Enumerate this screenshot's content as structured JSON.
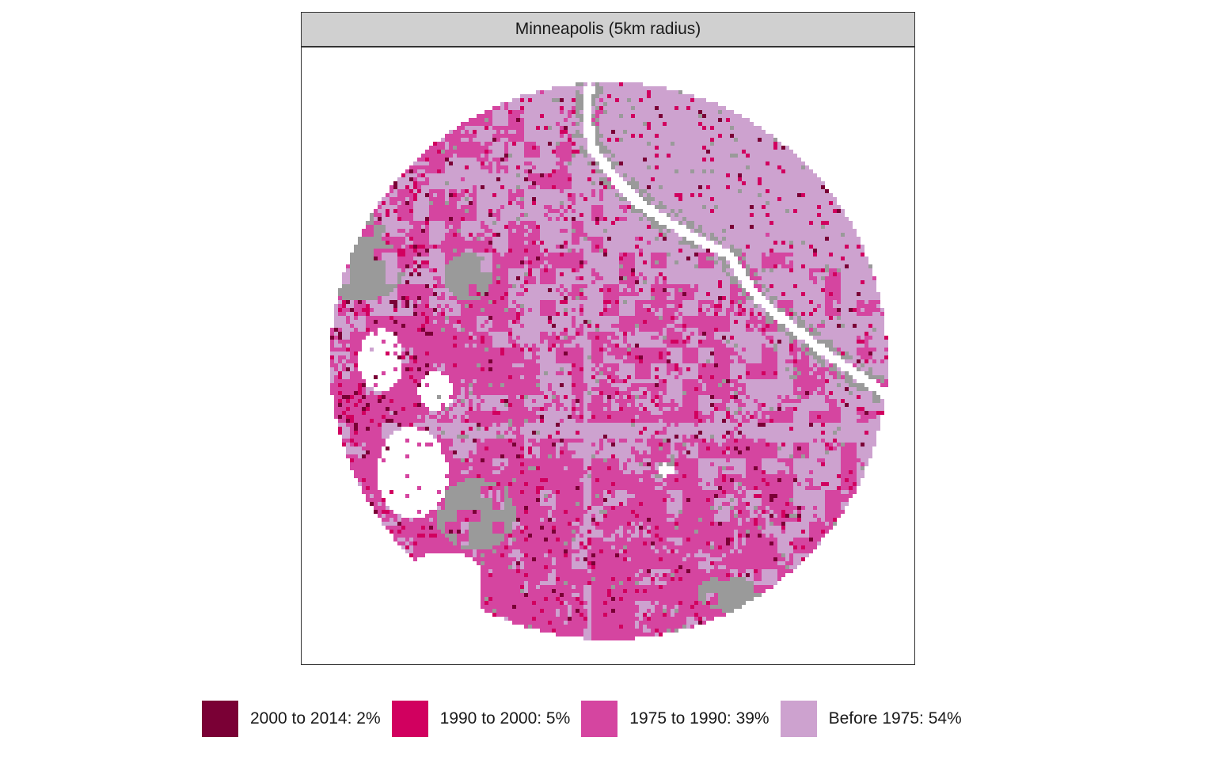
{
  "facet": {
    "title": "Minneapolis (5km radius)"
  },
  "map": {
    "shape": "circle",
    "colors": {
      "no_data": "#9a9a9a",
      "water": "#ffffff"
    }
  },
  "legend": {
    "items": [
      {
        "label": "2000 to 2014: 2%",
        "color": "#7a0035",
        "share": 2
      },
      {
        "label": "1990 to 2000: 5%",
        "color": "#d1005f",
        "share": 5
      },
      {
        "label": "1975 to 1990: 39%",
        "color": "#d545a0",
        "share": 39
      },
      {
        "label": "Before 1975: 54%",
        "color": "#cda2cf",
        "share": 54
      }
    ]
  }
}
